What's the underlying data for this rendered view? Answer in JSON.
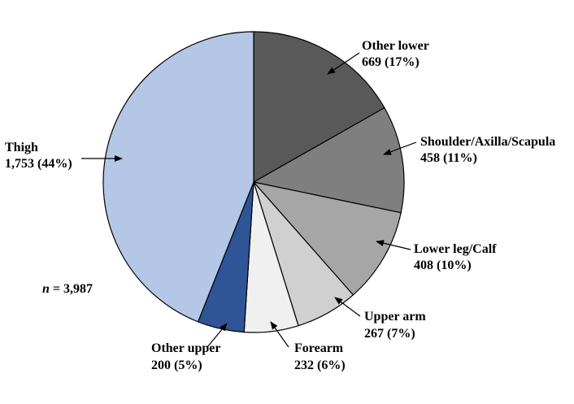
{
  "chart_data": {
    "type": "pie",
    "start_angle_deg": 0,
    "direction": "clockwise",
    "slices": [
      {
        "name": "Other lower",
        "value": 669,
        "value_label": "669 (17%)",
        "color": "#595959"
      },
      {
        "name": "Shoulder/Axilla/Scapula",
        "value": 458,
        "value_label": "458 (11%)",
        "color": "#7f7f7f"
      },
      {
        "name": "Lower leg/Calf",
        "value": 408,
        "value_label": "408 (10%)",
        "color": "#a6a6a6"
      },
      {
        "name": "Upper arm",
        "value": 267,
        "value_label": "267 (7%)",
        "color": "#d0d0d0"
      },
      {
        "name": "Forearm",
        "value": 232,
        "value_label": "232 (6%)",
        "color": "#f0f0f0"
      },
      {
        "name": "Other upper",
        "value": 200,
        "value_label": "200 (5%)",
        "color": "#2f5597"
      },
      {
        "name": "Thigh",
        "value": 1753,
        "value_label": "1,753 (44%)",
        "color": "#b4c7e7"
      }
    ],
    "n_label": {
      "italic": "n",
      "rest": " = 3,987"
    }
  }
}
